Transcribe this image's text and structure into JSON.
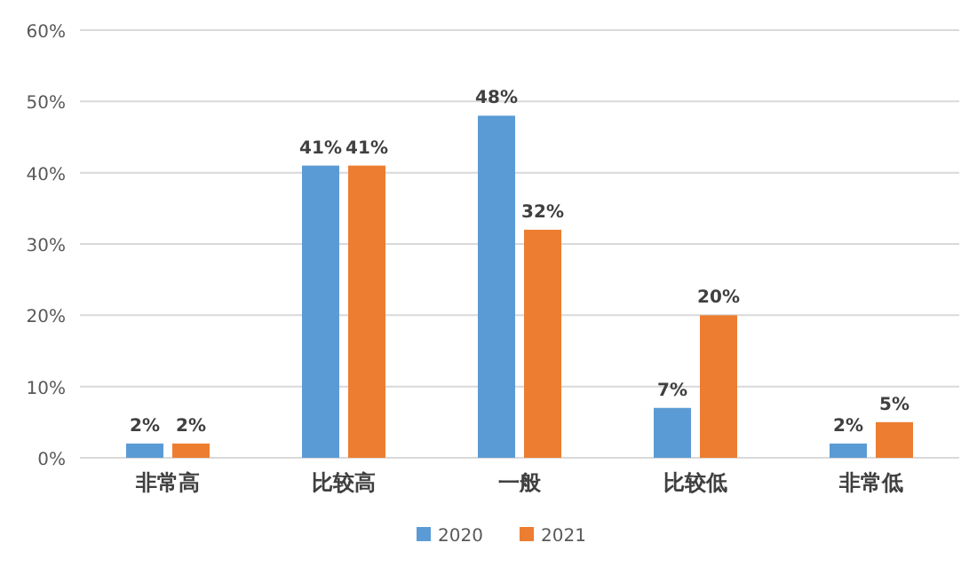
{
  "chart_data": {
    "type": "bar",
    "categories": [
      "非常高",
      "比较高",
      "一般",
      "比较低",
      "非常低"
    ],
    "series": [
      {
        "name": "2020",
        "color": "#5b9bd5",
        "values": [
          2,
          41,
          48,
          7,
          2
        ],
        "value_labels": [
          "2%",
          "41%",
          "48%",
          "7%",
          "2%"
        ]
      },
      {
        "name": "2021",
        "color": "#ed7d31",
        "values": [
          2,
          41,
          32,
          20,
          5
        ],
        "value_labels": [
          "2%",
          "41%",
          "32%",
          "20%",
          "5%"
        ]
      }
    ],
    "ylim": [
      0,
      60
    ],
    "yticks": [
      {
        "value": 0,
        "label": "0%"
      },
      {
        "value": 10,
        "label": "10%"
      },
      {
        "value": 20,
        "label": "20%"
      },
      {
        "value": 30,
        "label": "30%"
      },
      {
        "value": 40,
        "label": "40%"
      },
      {
        "value": 50,
        "label": "50%"
      },
      {
        "value": 60,
        "label": "60%"
      }
    ],
    "grid": "y",
    "legend": "bottom"
  }
}
